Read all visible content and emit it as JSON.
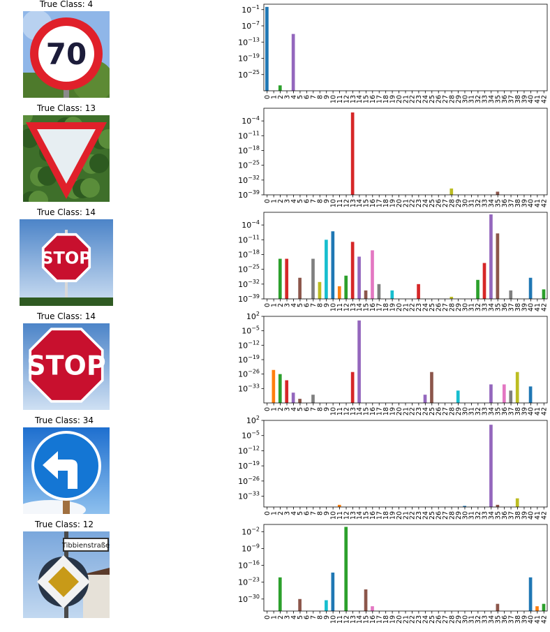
{
  "panels": [
    {
      "title": "True Class: 4",
      "image": {
        "kind": "speed-limit",
        "text": "70"
      },
      "chart_data": {
        "type": "bar",
        "yscale": "log",
        "ylim_exp": [
          -31,
          1
        ],
        "yticks": [
          "10^{-1}",
          "10^{-7}",
          "10^{-13}",
          "10^{-19}",
          "10^{-25}"
        ],
        "ytick_exps": [
          -1,
          -7,
          -13,
          -19,
          -25
        ],
        "categories": [
          "0",
          "1",
          "2",
          "3",
          "4",
          "5",
          "6",
          "7",
          "8",
          "9",
          "10",
          "11",
          "12",
          "13",
          "14",
          "15",
          "16",
          "17",
          "18",
          "19",
          "20",
          "21",
          "22",
          "23",
          "24",
          "25",
          "26",
          "27",
          "28",
          "29",
          "30",
          "31",
          "32",
          "33",
          "34",
          "35",
          "36",
          "37",
          "38",
          "39",
          "40",
          "41",
          "42"
        ],
        "bars": [
          {
            "cls": 0,
            "exp": 0
          },
          {
            "cls": 2,
            "exp": -29
          },
          {
            "cls": 4,
            "exp": -10
          }
        ],
        "label_ticks": true
      }
    },
    {
      "title": "True Class: 13",
      "image": {
        "kind": "yield"
      },
      "chart_data": {
        "type": "bar",
        "yscale": "log",
        "ylim_exp": [
          -39,
          2
        ],
        "yticks": [
          "10^{-4}",
          "10^{-11}",
          "10^{-18}",
          "10^{-25}",
          "10^{-32}",
          "10^{-39}"
        ],
        "ytick_exps": [
          -4,
          -11,
          -18,
          -25,
          -32,
          -39
        ],
        "categories": [
          "0",
          "1",
          "2",
          "3",
          "4",
          "5",
          "6",
          "7",
          "8",
          "9",
          "10",
          "11",
          "12",
          "13",
          "14",
          "15",
          "16",
          "17",
          "18",
          "19",
          "20",
          "21",
          "22",
          "23",
          "24",
          "25",
          "26",
          "27",
          "28",
          "29",
          "30",
          "31",
          "32",
          "33",
          "34",
          "35",
          "36",
          "37",
          "38",
          "39",
          "40",
          "41",
          "42"
        ],
        "bars": [
          {
            "cls": 13,
            "exp": 0
          },
          {
            "cls": 28,
            "exp": -36
          },
          {
            "cls": 35,
            "exp": -37.5
          }
        ],
        "label_ticks": true
      }
    },
    {
      "title": "True Class: 14",
      "image": {
        "kind": "stop-small",
        "text": "STOP"
      },
      "chart_data": {
        "type": "bar",
        "yscale": "log",
        "ylim_exp": [
          -39,
          2
        ],
        "yticks": [
          "10^{-4}",
          "10^{-11}",
          "10^{-18}",
          "10^{-25}",
          "10^{-32}",
          "10^{-39}"
        ],
        "ytick_exps": [
          -4,
          -11,
          -18,
          -25,
          -32,
          -39
        ],
        "categories": [
          "0",
          "1",
          "2",
          "3",
          "4",
          "5",
          "6",
          "7",
          "8",
          "9",
          "10",
          "11",
          "12",
          "13",
          "14",
          "15",
          "16",
          "17",
          "18",
          "19",
          "20",
          "21",
          "22",
          "23",
          "24",
          "25",
          "26",
          "27",
          "28",
          "29",
          "30",
          "31",
          "32",
          "33",
          "34",
          "35",
          "36",
          "37",
          "38",
          "39",
          "40",
          "41",
          "42"
        ],
        "bars": [
          {
            "cls": 2,
            "exp": -20
          },
          {
            "cls": 3,
            "exp": -20
          },
          {
            "cls": 5,
            "exp": -29
          },
          {
            "cls": 7,
            "exp": -20
          },
          {
            "cls": 8,
            "exp": -31
          },
          {
            "cls": 9,
            "exp": -11
          },
          {
            "cls": 10,
            "exp": -7
          },
          {
            "cls": 11,
            "exp": -33
          },
          {
            "cls": 12,
            "exp": -28
          },
          {
            "cls": 13,
            "exp": -12
          },
          {
            "cls": 14,
            "exp": -19
          },
          {
            "cls": 15,
            "exp": -35
          },
          {
            "cls": 16,
            "exp": -16
          },
          {
            "cls": 17,
            "exp": -32
          },
          {
            "cls": 19,
            "exp": -35
          },
          {
            "cls": 23,
            "exp": -32
          },
          {
            "cls": 28,
            "exp": -38
          },
          {
            "cls": 32,
            "exp": -30
          },
          {
            "cls": 33,
            "exp": -22
          },
          {
            "cls": 34,
            "exp": 1
          },
          {
            "cls": 35,
            "exp": -8
          },
          {
            "cls": 37,
            "exp": -35
          },
          {
            "cls": 40,
            "exp": -29
          },
          {
            "cls": 42,
            "exp": -34.5
          }
        ],
        "label_ticks": true
      }
    },
    {
      "title": "True Class: 14",
      "image": {
        "kind": "stop-large",
        "text": "STOP"
      },
      "chart_data": {
        "type": "bar",
        "yscale": "log",
        "ylim_exp": [
          -40,
          2
        ],
        "yticks": [
          "10^{2}",
          "10^{-5}",
          "10^{-12}",
          "10^{-19}",
          "10^{-26}",
          "10^{-33}"
        ],
        "ytick_exps": [
          2,
          -5,
          -12,
          -19,
          -26,
          -33
        ],
        "categories": [
          "0",
          "1",
          "2",
          "3",
          "4",
          "5",
          "6",
          "7",
          "8",
          "9",
          "10",
          "11",
          "12",
          "13",
          "14",
          "15",
          "16",
          "17",
          "18",
          "19",
          "20",
          "21",
          "22",
          "23",
          "24",
          "25",
          "26",
          "27",
          "28",
          "29",
          "30",
          "31",
          "32",
          "33",
          "34",
          "35",
          "36",
          "37",
          "38",
          "39",
          "40",
          "41",
          "42"
        ],
        "bars": [
          {
            "cls": 1,
            "exp": -24
          },
          {
            "cls": 2,
            "exp": -26
          },
          {
            "cls": 3,
            "exp": -29
          },
          {
            "cls": 4,
            "exp": -35
          },
          {
            "cls": 5,
            "exp": -38
          },
          {
            "cls": 7,
            "exp": -36
          },
          {
            "cls": 13,
            "exp": -25
          },
          {
            "cls": 14,
            "exp": 0
          },
          {
            "cls": 24,
            "exp": -36
          },
          {
            "cls": 25,
            "exp": -25
          },
          {
            "cls": 29,
            "exp": -34
          },
          {
            "cls": 34,
            "exp": -31
          },
          {
            "cls": 36,
            "exp": -31
          },
          {
            "cls": 37,
            "exp": -34
          },
          {
            "cls": 38,
            "exp": -25
          },
          {
            "cls": 40,
            "exp": -32
          }
        ],
        "label_ticks": false
      }
    },
    {
      "title": "True Class: 34",
      "image": {
        "kind": "turn-left"
      },
      "chart_data": {
        "type": "bar",
        "yscale": "log",
        "ylim_exp": [
          -38,
          2
        ],
        "yticks": [
          "10^{2}",
          "10^{-5}",
          "10^{-12}",
          "10^{-19}",
          "10^{-26}",
          "10^{-33}"
        ],
        "ytick_exps": [
          2,
          -5,
          -12,
          -19,
          -26,
          -33
        ],
        "categories": [
          "0",
          "1",
          "2",
          "3",
          "4",
          "5",
          "6",
          "7",
          "8",
          "9",
          "10",
          "11",
          "12",
          "13",
          "14",
          "15",
          "16",
          "17",
          "18",
          "19",
          "20",
          "21",
          "22",
          "23",
          "24",
          "25",
          "26",
          "27",
          "28",
          "29",
          "30",
          "31",
          "32",
          "33",
          "34",
          "35",
          "36",
          "37",
          "38",
          "39",
          "40",
          "41",
          "42"
        ],
        "bars": [
          {
            "cls": 11,
            "exp": -37
          },
          {
            "cls": 30,
            "exp": -37.5
          },
          {
            "cls": 34,
            "exp": 0
          },
          {
            "cls": 35,
            "exp": -37
          },
          {
            "cls": 38,
            "exp": -34
          }
        ],
        "label_ticks": true
      }
    },
    {
      "title": "True Class: 12",
      "image": {
        "kind": "priority-road",
        "street": "Tibbienstraße"
      },
      "chart_data": {
        "type": "bar",
        "yscale": "log",
        "ylim_exp": [
          -35,
          1
        ],
        "yticks": [
          "10^{-2}",
          "10^{-9}",
          "10^{-16}",
          "10^{-23}",
          "10^{-30}"
        ],
        "ytick_exps": [
          -2,
          -9,
          -16,
          -23,
          -30
        ],
        "categories": [
          "0",
          "1",
          "2",
          "3",
          "4",
          "5",
          "6",
          "7",
          "8",
          "9",
          "10",
          "11",
          "12",
          "13",
          "14",
          "15",
          "16",
          "17",
          "18",
          "19",
          "20",
          "21",
          "22",
          "23",
          "24",
          "25",
          "26",
          "27",
          "28",
          "29",
          "30",
          "31",
          "32",
          "33",
          "34",
          "35",
          "36",
          "37",
          "38",
          "39",
          "40",
          "41",
          "42"
        ],
        "bars": [
          {
            "cls": 2,
            "exp": -21
          },
          {
            "cls": 5,
            "exp": -30
          },
          {
            "cls": 9,
            "exp": -30.5
          },
          {
            "cls": 10,
            "exp": -19
          },
          {
            "cls": 12,
            "exp": 0
          },
          {
            "cls": 15,
            "exp": -26
          },
          {
            "cls": 16,
            "exp": -33
          },
          {
            "cls": 35,
            "exp": -32
          },
          {
            "cls": 40,
            "exp": -21
          },
          {
            "cls": 41,
            "exp": -33
          },
          {
            "cls": 42,
            "exp": -32
          }
        ],
        "label_ticks": true
      }
    }
  ],
  "colors": [
    "#1f77b4",
    "#ff7f0e",
    "#2ca02c",
    "#d62728",
    "#9467bd",
    "#8c564b",
    "#e377c2",
    "#7f7f7f",
    "#bcbd22",
    "#17becf"
  ]
}
